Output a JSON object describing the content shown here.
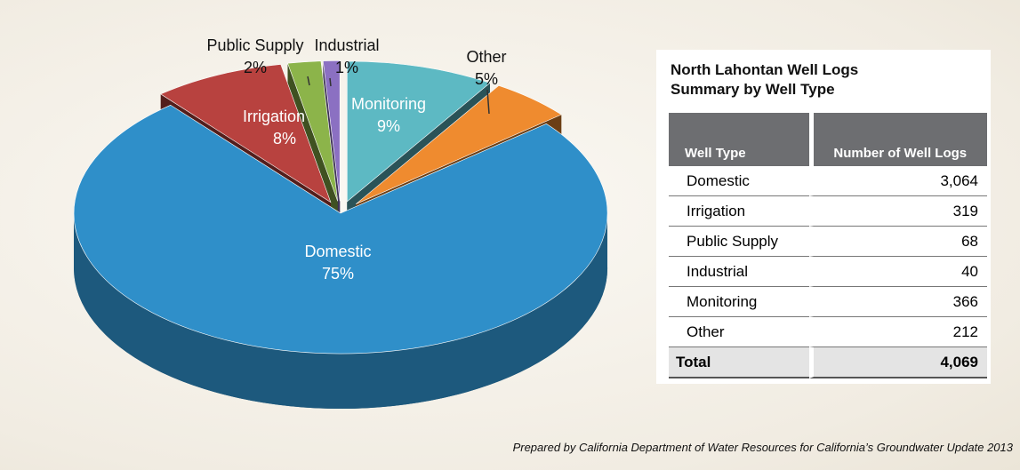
{
  "chart_data": {
    "type": "pie",
    "categories": [
      "Domestic",
      "Irrigation",
      "Public Supply",
      "Industrial",
      "Monitoring",
      "Other"
    ],
    "values": [
      75,
      8,
      2,
      1,
      9,
      5
    ],
    "value_labels": [
      "75%",
      "8%",
      "2%",
      "1%",
      "9%",
      "5%"
    ],
    "colors": [
      "#2f8fc9",
      "#b8423f",
      "#8cb44a",
      "#8b70c2",
      "#5db9c3",
      "#ef8b2f"
    ]
  },
  "table": {
    "title": [
      "North Lahontan Well Logs",
      "Summary by Well Type"
    ],
    "header": [
      "Well Type",
      "Number of Well Logs"
    ],
    "rows": [
      [
        "Domestic",
        "3,064"
      ],
      [
        "Irrigation",
        "319"
      ],
      [
        "Public Supply",
        "68"
      ],
      [
        "Industrial",
        "40"
      ],
      [
        "Monitoring",
        "366"
      ],
      [
        "Other",
        "212"
      ]
    ],
    "total": [
      "Total",
      "4,069"
    ]
  },
  "credit": "Prepared by California Department of Water Resources for California’s Groundwater Update 2013"
}
